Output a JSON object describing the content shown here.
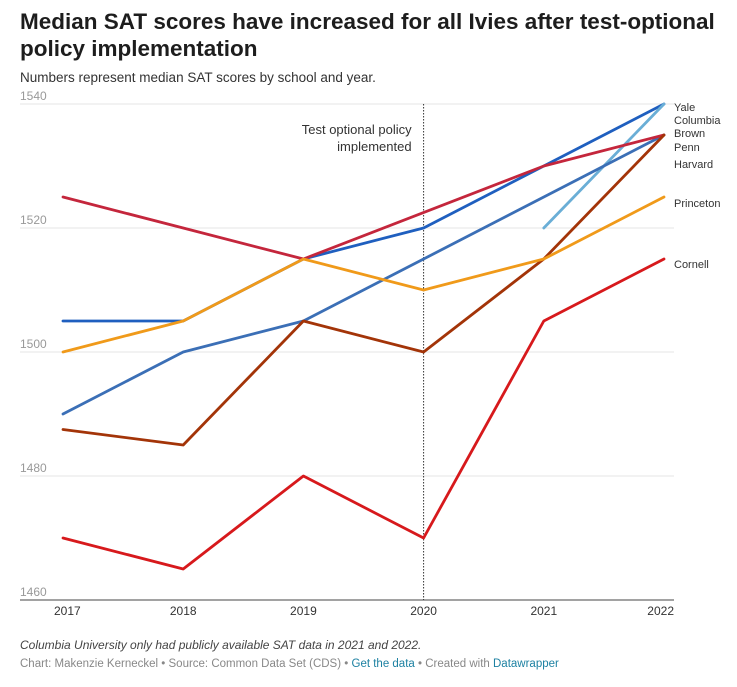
{
  "header": {
    "title": "Median SAT scores have increased for all Ivies after test-optional policy implementation",
    "subtitle": "Numbers represent median SAT scores by school and year."
  },
  "footer": {
    "notes": "Columbia University only had publicly available SAT data in 2021 and 2022.",
    "credit": "Chart: Makenzie Kerneckel",
    "separator": "•",
    "source": "Source: Common Data Set (CDS)",
    "get_data": "Get the data",
    "created_with": "Created with",
    "tool": "Datawrapper"
  },
  "chart_data": {
    "type": "line",
    "x": [
      2017,
      2018,
      2019,
      2020,
      2021,
      2022
    ],
    "xlim": [
      2017,
      2022
    ],
    "ylim": [
      1460,
      1540
    ],
    "yticks": [
      1460,
      1480,
      1500,
      1520,
      1540
    ],
    "grid": true,
    "legend": "direct labels at line ends (right)",
    "annotation": {
      "x": 2020,
      "line1": "Test optional policy",
      "line2": "implemented"
    },
    "series": [
      {
        "name": "Yale",
        "color": "#1f5fbf",
        "values": [
          1505,
          1505,
          1515,
          1520,
          1530,
          1540
        ]
      },
      {
        "name": "Columbia",
        "color": "#6aaed6",
        "values": [
          null,
          null,
          null,
          null,
          1520,
          1540
        ]
      },
      {
        "name": "Brown",
        "color": "#3b6fb6",
        "values": [
          1490,
          1500,
          1505,
          1515,
          1525,
          1535
        ]
      },
      {
        "name": "Penn",
        "color": "#c4263c",
        "values": [
          1525,
          1520,
          1515,
          null,
          1530,
          1535
        ]
      },
      {
        "name": "Harvard",
        "color": "#a33408",
        "values": [
          1487.5,
          1485,
          1505,
          1500,
          1515,
          1535
        ]
      },
      {
        "name": "Princeton",
        "color": "#f09a1a",
        "values": [
          1500,
          1505,
          1515,
          1510,
          1515,
          1525
        ]
      },
      {
        "name": "Cornell",
        "color": "#d7191c",
        "values": [
          1470,
          1465,
          1480,
          1470,
          1505,
          1515
        ]
      }
    ]
  }
}
